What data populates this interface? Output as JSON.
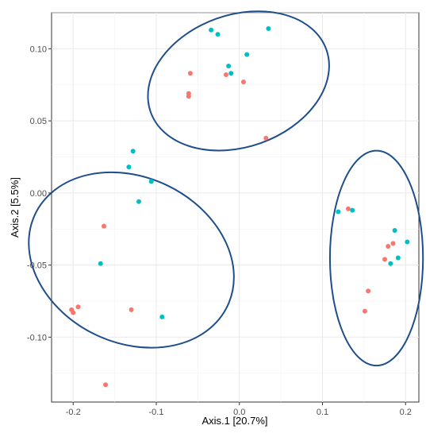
{
  "chart_data": {
    "type": "scatter",
    "xlabel": "Axis.1   [20.7%]",
    "ylabel": "Axis.2   [5.5%]",
    "xlim": [
      -0.226,
      0.216
    ],
    "ylim": [
      -0.145,
      0.125
    ],
    "x_ticks": [
      -0.2,
      -0.1,
      0.0,
      0.1,
      0.2
    ],
    "x_tick_labels": [
      "-0.2",
      "-0.1",
      "0.0",
      "0.1",
      "0.2"
    ],
    "y_ticks": [
      -0.1,
      -0.05,
      0.0,
      0.05,
      0.1
    ],
    "y_tick_labels": [
      "-0.10",
      "-0.05",
      "0.00",
      "0.05",
      "0.10"
    ],
    "grid": true,
    "series": [
      {
        "color": "#F8766D",
        "points": [
          [
            -0.059,
            0.083
          ],
          [
            -0.061,
            0.069
          ],
          [
            -0.061,
            0.067
          ],
          [
            -0.016,
            0.082
          ],
          [
            0.005,
            0.077
          ],
          [
            0.032,
            0.038
          ],
          [
            -0.163,
            -0.023
          ],
          [
            -0.194,
            -0.079
          ],
          [
            -0.202,
            -0.081
          ],
          [
            -0.2,
            -0.083
          ],
          [
            -0.13,
            -0.081
          ],
          [
            -0.161,
            -0.133
          ],
          [
            0.131,
            -0.011
          ],
          [
            0.185,
            -0.035
          ],
          [
            0.179,
            -0.037
          ],
          [
            0.175,
            -0.046
          ],
          [
            0.155,
            -0.068
          ],
          [
            0.151,
            -0.082
          ]
        ]
      },
      {
        "color": "#00BFC4",
        "points": [
          [
            -0.034,
            0.113
          ],
          [
            -0.026,
            0.11
          ],
          [
            0.035,
            0.114
          ],
          [
            0.009,
            0.096
          ],
          [
            -0.013,
            0.088
          ],
          [
            -0.01,
            0.083
          ],
          [
            -0.128,
            0.029
          ],
          [
            -0.133,
            0.018
          ],
          [
            -0.106,
            0.008
          ],
          [
            -0.121,
            -0.006
          ],
          [
            -0.167,
            -0.049
          ],
          [
            -0.093,
            -0.086
          ],
          [
            0.119,
            -0.013
          ],
          [
            0.136,
            -0.012
          ],
          [
            0.187,
            -0.026
          ],
          [
            0.202,
            -0.034
          ],
          [
            0.191,
            -0.045
          ],
          [
            0.182,
            -0.049
          ]
        ]
      }
    ],
    "ellipses": [
      {
        "cx": -0.001,
        "cy": 0.0777,
        "rx": 0.1122,
        "ry": 0.0458,
        "angle_deg": -19.5
      },
      {
        "cx": -0.13,
        "cy": -0.0465,
        "rx": 0.0995,
        "ry": 0.074,
        "angle_deg": -64.6
      },
      {
        "cx": 0.165,
        "cy": -0.0452,
        "rx": 0.056,
        "ry": 0.0745,
        "angle_deg": 0
      }
    ],
    "ellipse_color": "#1F4E8C"
  }
}
